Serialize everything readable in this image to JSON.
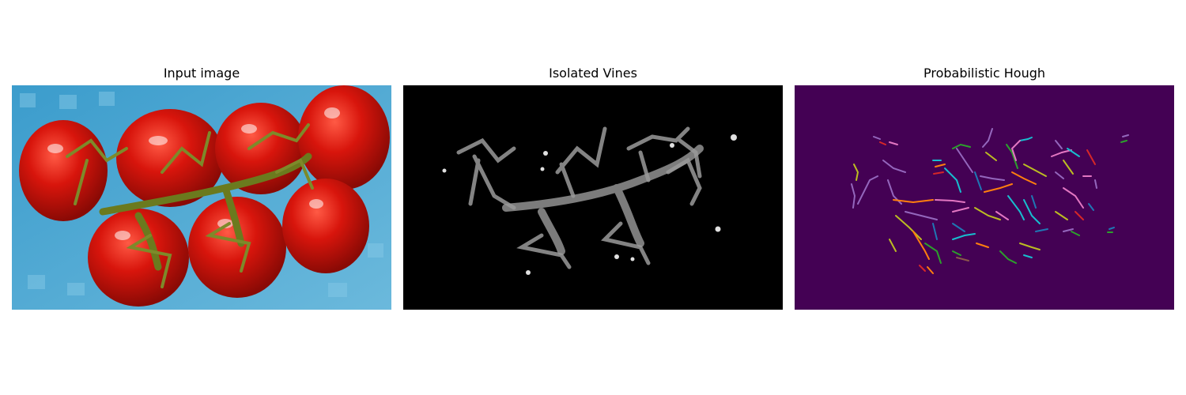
{
  "panels": [
    {
      "title": "Input image"
    },
    {
      "title": "Isolated Vines"
    },
    {
      "title": "Probabilistic Hough"
    }
  ],
  "colors": {
    "background": "#ffffff",
    "tray_blue": "#4aa3cf",
    "tomato_red": "#d0140c",
    "vine_green": "#6b7a1e",
    "mask_background": "#000000",
    "mask_vine": "#8a8a8a",
    "hough_background": "#440154",
    "hough_line_palette": [
      "#1f77b4",
      "#ff7f0e",
      "#2ca02c",
      "#d62728",
      "#9467bd",
      "#8c564b",
      "#e377c2",
      "#bcbd22",
      "#17becf"
    ]
  }
}
